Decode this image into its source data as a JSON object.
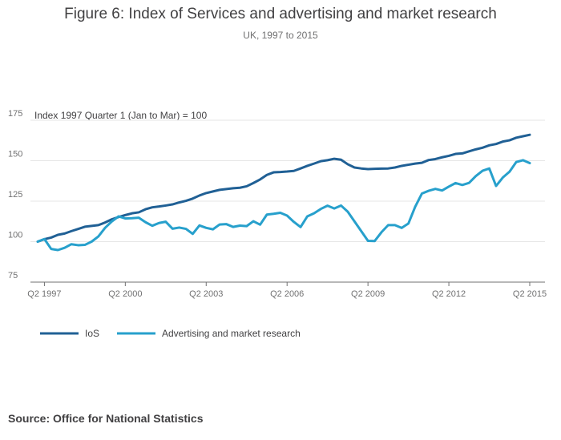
{
  "header": {
    "title": "Figure 6: Index of Services and advertising and market research",
    "subtitle": "UK, 1997 to 2015"
  },
  "footer": {
    "source": "Source: Office for National Statistics"
  },
  "colors": {
    "ios": "#206095",
    "adv": "#27A0CC",
    "grid": "#e6e6e6",
    "axis": "#707071"
  },
  "chart_data": {
    "type": "line",
    "title": "Figure 6: Index of Services and advertising and market research",
    "subtitle": "UK, 1997 to 2015",
    "ylabel": "Index 1997 Quarter 1 (Jan to Mar) = 100",
    "xlabel": "",
    "ylim": [
      75,
      175
    ],
    "yticks": [
      75,
      100,
      125,
      150,
      175
    ],
    "grid": true,
    "legend": "bottom-left",
    "x_start": "Q1 1997",
    "x_end": "Q2 2015",
    "xticks": [
      {
        "index": 1,
        "label": "Q2 1997"
      },
      {
        "index": 13,
        "label": "Q2 2000"
      },
      {
        "index": 25,
        "label": "Q2 2003"
      },
      {
        "index": 37,
        "label": "Q2 2006"
      },
      {
        "index": 49,
        "label": "Q2 2009"
      },
      {
        "index": 61,
        "label": "Q2 2012"
      },
      {
        "index": 73,
        "label": "Q2 2015"
      }
    ],
    "series": [
      {
        "name": "IoS",
        "key": "ios",
        "values": [
          100.0,
          101.5,
          102.5,
          104.2,
          105.0,
          106.5,
          107.8,
          109.2,
          109.7,
          110.2,
          111.8,
          113.8,
          115.2,
          116.4,
          117.5,
          118.1,
          120.0,
          121.2,
          121.7,
          122.3,
          123.0,
          124.2,
          125.2,
          126.6,
          128.5,
          130.0,
          131.0,
          132.0,
          132.5,
          133.0,
          133.3,
          134.2,
          136.2,
          138.4,
          141.2,
          142.8,
          143.0,
          143.3,
          143.7,
          145.2,
          146.8,
          148.2,
          149.7,
          150.3,
          151.2,
          150.6,
          147.8,
          145.8,
          145.2,
          144.8,
          145.0,
          145.1,
          145.2,
          145.8,
          146.8,
          147.5,
          148.2,
          148.7,
          150.4,
          151.0,
          152.1,
          153.0,
          154.2,
          154.5,
          155.8,
          157.0,
          158.0,
          159.5,
          160.3,
          161.8,
          162.6,
          164.2,
          165.1,
          166.0
        ]
      },
      {
        "name": "Advertising and market research",
        "key": "adv",
        "values": [
          100.0,
          101.6,
          95.5,
          94.8,
          96.2,
          98.4,
          97.8,
          98.0,
          100.0,
          103.2,
          108.5,
          112.5,
          115.6,
          114.3,
          114.5,
          114.8,
          112.0,
          109.8,
          111.5,
          112.3,
          108.0,
          108.7,
          107.9,
          104.8,
          110.0,
          108.5,
          107.6,
          110.6,
          110.8,
          109.1,
          109.9,
          109.6,
          112.6,
          110.5,
          116.7,
          117.2,
          117.8,
          116.1,
          112.2,
          109.0,
          115.6,
          117.5,
          120.2,
          122.2,
          120.5,
          122.3,
          118.5,
          112.5,
          106.5,
          100.5,
          100.4,
          105.8,
          110.2,
          110.2,
          108.5,
          111.2,
          121.5,
          129.7,
          131.4,
          132.6,
          131.6,
          134.0,
          136.2,
          135.0,
          136.3,
          140.5,
          143.8,
          145.2,
          134.4,
          139.6,
          143.2,
          149.2,
          150.3,
          148.5
        ]
      }
    ]
  }
}
